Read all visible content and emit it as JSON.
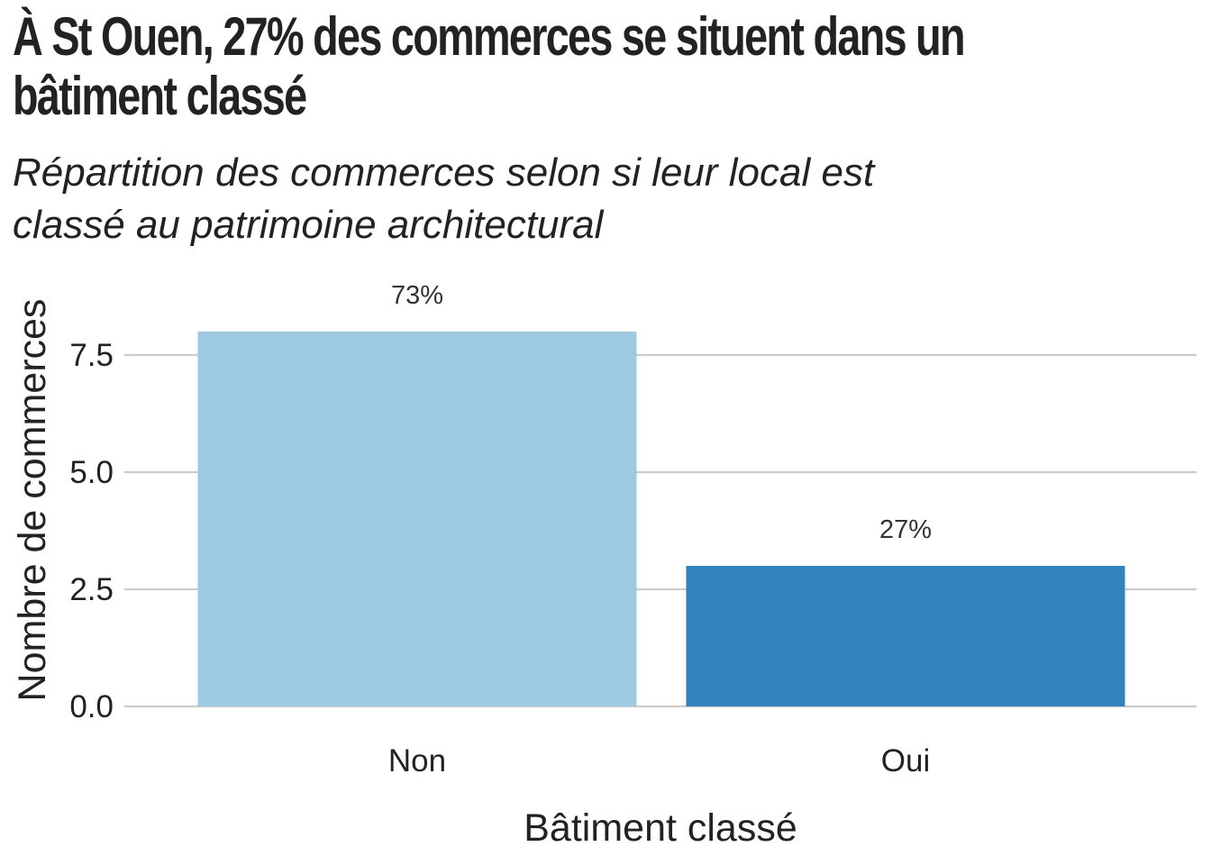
{
  "title_lines": [
    "À St Ouen, 27% des commerces se situent dans un",
    "bâtiment classé"
  ],
  "subtitle_lines": [
    "Répartition des commerces selon si leur local est",
    "classé au patrimoine architectural"
  ],
  "chart_data": {
    "type": "bar",
    "title": "À St Ouen, 27% des commerces se situent dans un bâtiment classé",
    "subtitle": "Répartition des commerces selon si leur local est classé au patrimoine architectural",
    "xlabel": "Bâtiment classé",
    "ylabel": "Nombre de commerces",
    "categories": [
      "Non",
      "Oui"
    ],
    "values": [
      8,
      3
    ],
    "data_labels": [
      "73%",
      "27%"
    ],
    "colors": [
      "#9ECAE1",
      "#3182BD"
    ],
    "ylim": [
      0,
      8.4
    ],
    "yticks": [
      0,
      2.5,
      5,
      7.5
    ],
    "ytick_labels": [
      "0.0",
      "2.5",
      "5.0",
      "7.5"
    ],
    "grid": "horizontal",
    "legend": "none"
  }
}
